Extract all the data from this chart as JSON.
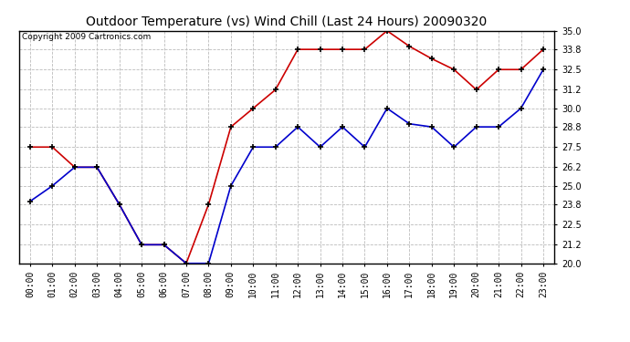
{
  "title": "Outdoor Temperature (vs) Wind Chill (Last 24 Hours) 20090320",
  "copyright": "Copyright 2009 Cartronics.com",
  "hours": [
    "00:00",
    "01:00",
    "02:00",
    "03:00",
    "04:00",
    "05:00",
    "06:00",
    "07:00",
    "08:00",
    "09:00",
    "10:00",
    "11:00",
    "12:00",
    "13:00",
    "14:00",
    "15:00",
    "16:00",
    "17:00",
    "18:00",
    "19:00",
    "20:00",
    "21:00",
    "22:00",
    "23:00"
  ],
  "temp": [
    24.0,
    25.0,
    26.2,
    26.2,
    23.8,
    21.2,
    21.2,
    20.0,
    20.0,
    25.0,
    27.5,
    27.5,
    28.8,
    27.5,
    28.8,
    27.5,
    30.0,
    29.0,
    28.8,
    27.5,
    28.8,
    28.8,
    30.0,
    32.5
  ],
  "wind_chill": [
    27.5,
    27.5,
    26.2,
    26.2,
    23.8,
    21.2,
    21.2,
    20.0,
    23.8,
    28.8,
    30.0,
    31.2,
    33.8,
    33.8,
    33.8,
    33.8,
    35.0,
    34.0,
    33.2,
    32.5,
    31.2,
    32.5,
    32.5,
    33.8
  ],
  "ylim": [
    20.0,
    35.0
  ],
  "yticks": [
    20.0,
    21.2,
    22.5,
    23.8,
    25.0,
    26.2,
    27.5,
    28.8,
    30.0,
    31.2,
    32.5,
    33.8,
    35.0
  ],
  "temp_color": "#0000cc",
  "wind_chill_color": "#cc0000",
  "background_color": "#ffffff",
  "grid_color": "#bbbbbb",
  "title_fontsize": 10,
  "tick_fontsize": 7,
  "copyright_fontsize": 6.5
}
